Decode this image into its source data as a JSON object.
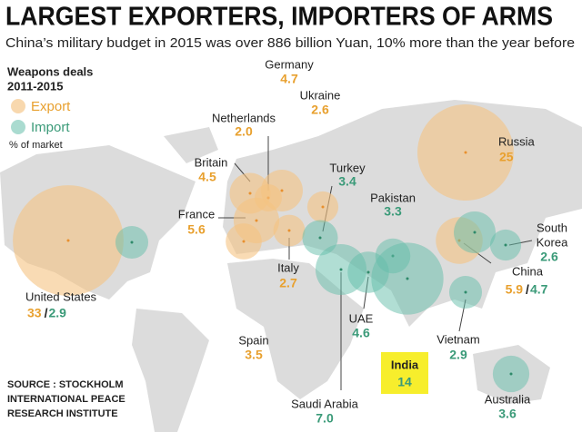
{
  "header": {
    "title": "LARGEST EXPORTERS, IMPORTERS OF ARMS",
    "subtitle": "China’s military budget in 2015 was over 886 billion Yuan, 10% more than the year before"
  },
  "legend": {
    "title_lines": [
      "Weapons deals",
      "2011-2015"
    ],
    "export": "Export",
    "import": "Import",
    "note": "% of market"
  },
  "separator": "/",
  "countries": [
    {
      "name": [
        "United States"
      ],
      "export": 33,
      "import": 2.9
    },
    {
      "name": [
        "Britain"
      ],
      "export": 4.5
    },
    {
      "name": [
        "Netherlands"
      ],
      "export": 2.0,
      "export_label": "2.0"
    },
    {
      "name": [
        "Germany"
      ],
      "export": 4.7
    },
    {
      "name": [
        "Ukraine"
      ],
      "export": 2.6
    },
    {
      "name": [
        "France"
      ],
      "export": 5.6
    },
    {
      "name": [
        "Italy"
      ],
      "export": 2.7
    },
    {
      "name": [
        "Spain"
      ],
      "export": 3.5
    },
    {
      "name": [
        "Turkey"
      ],
      "import": 3.4
    },
    {
      "name": [
        "Pakistan"
      ],
      "import": 3.3
    },
    {
      "name": [
        "Saudi Arabia"
      ],
      "import": 7.0,
      "import_label": "7.0"
    },
    {
      "name": [
        "UAE"
      ],
      "import": 4.6
    },
    {
      "name": [
        "India"
      ],
      "import": 14
    },
    {
      "name": [
        "Russia"
      ],
      "export": 25
    },
    {
      "name": [
        "China"
      ],
      "export": 5.9,
      "import": 4.7
    },
    {
      "name": [
        "South",
        "Korea"
      ],
      "import": 2.6
    },
    {
      "name": [
        "Vietnam"
      ],
      "import": 2.9
    },
    {
      "name": [
        "Australia"
      ],
      "import": 3.6
    }
  ],
  "source_lines": [
    "SOURCE : STOCKHOLM",
    "INTERNATIONAL PEACE",
    "RESEARCH INSTITUTE"
  ]
}
